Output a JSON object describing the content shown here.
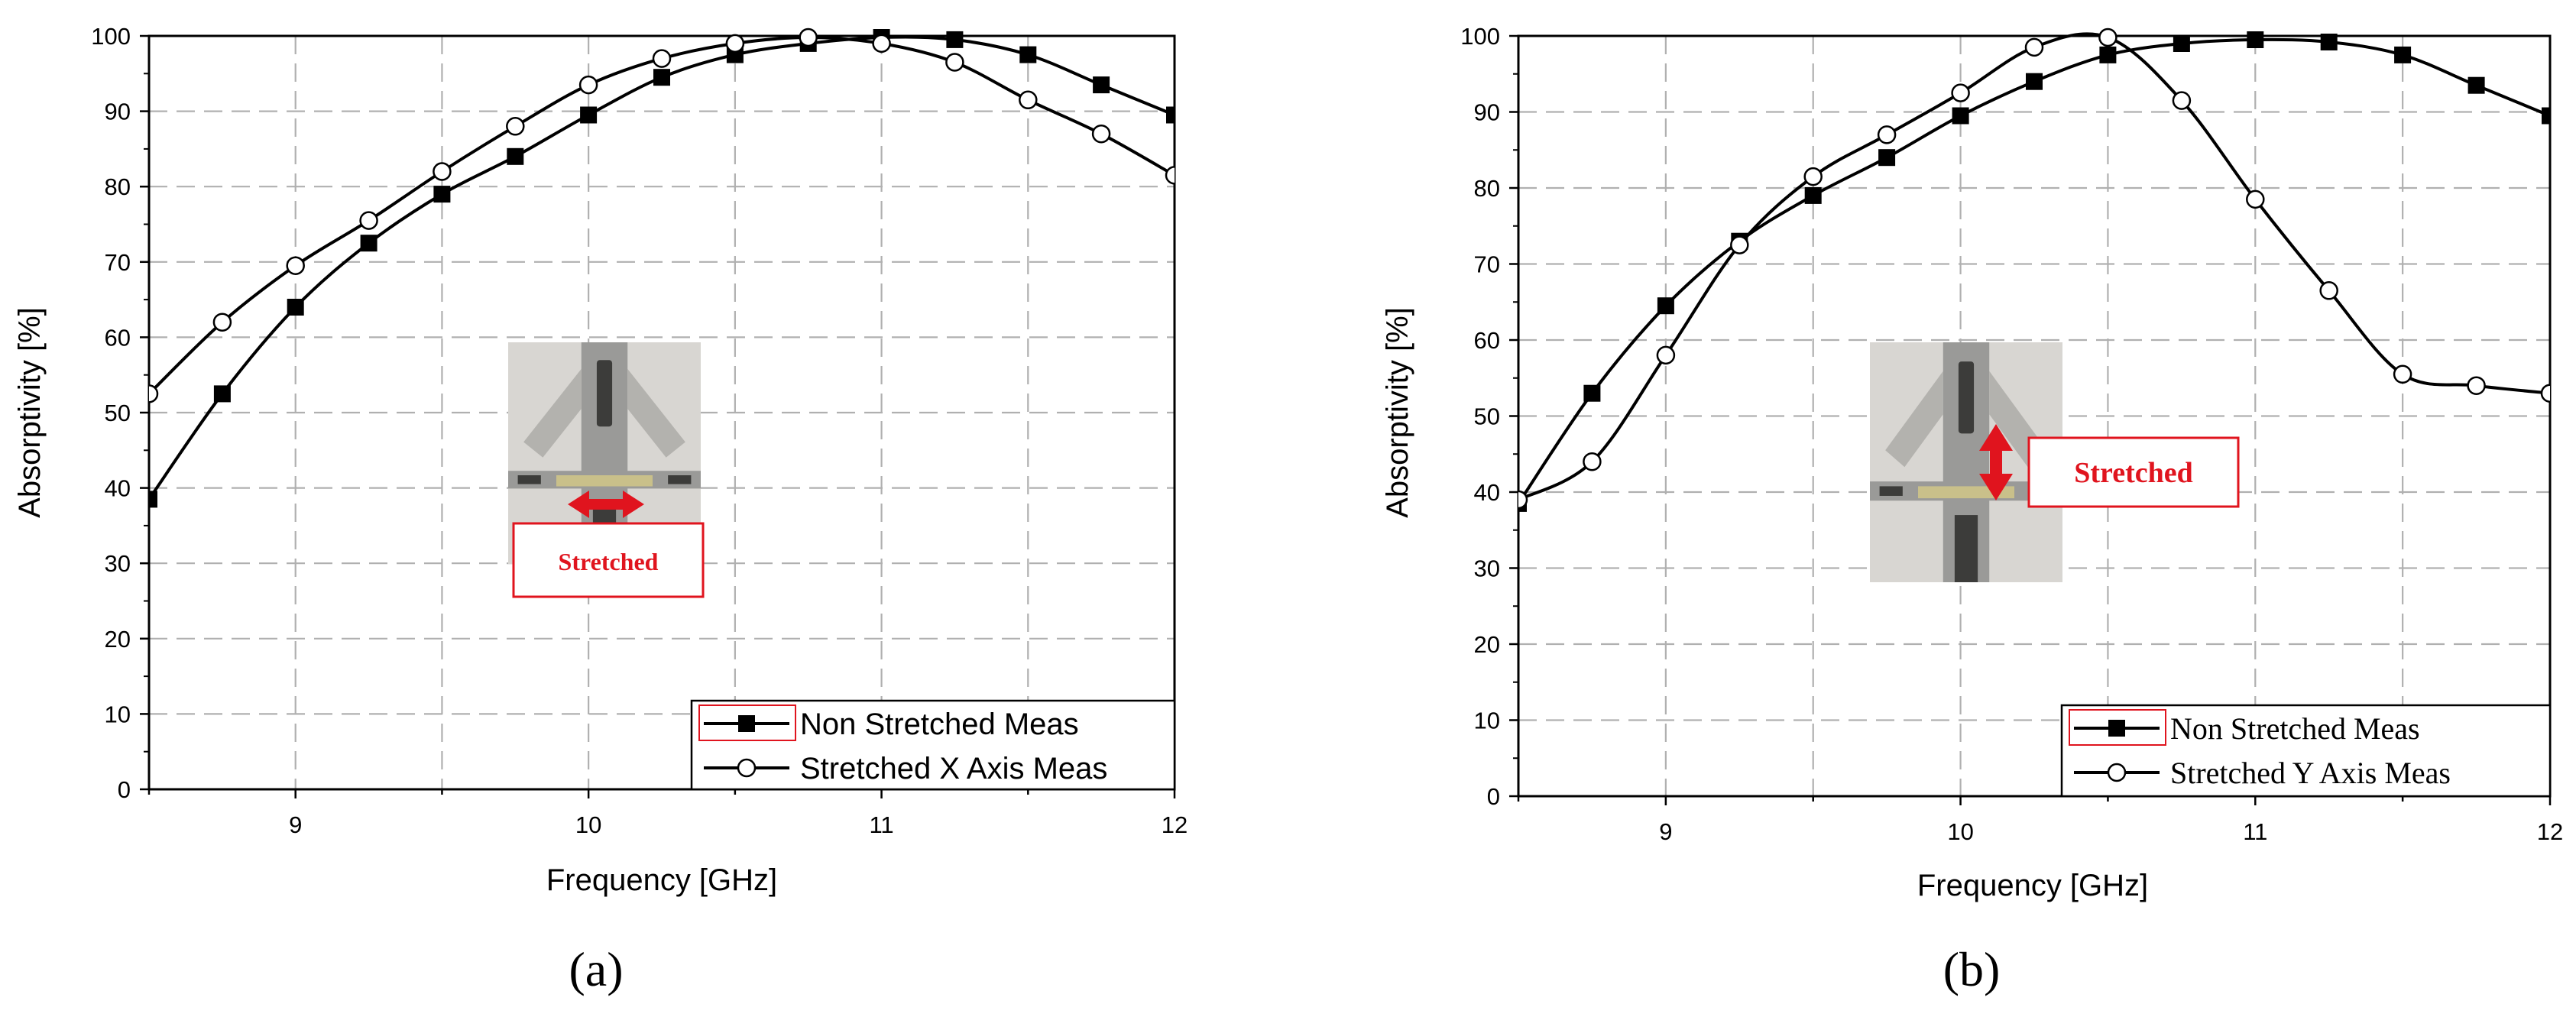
{
  "figure": {
    "panels": [
      {
        "caption": "(a)",
        "inset_label": "Stretched",
        "inset_arrow": "horizontal",
        "photo_colors": {
          "frame": "#9a9a98",
          "bg": "#d8d6d2",
          "dark": "#3c3c3a",
          "chip": "#c9c08a"
        }
      },
      {
        "caption": "(b)",
        "inset_label": "Stretched",
        "inset_arrow": "vertical",
        "photo_colors": {
          "frame": "#9a9a98",
          "bg": "#d8d6d2",
          "dark": "#3c3c3a",
          "chip": "#c9c08a"
        }
      }
    ],
    "colors": {
      "line": "#000000",
      "grid": "#b0b0b0",
      "inset_accent": "#e0141e"
    }
  },
  "chart_data": [
    {
      "type": "line",
      "xlabel": "Frequency [GHz]",
      "ylabel": "Absorptivity [%]",
      "xlim": [
        8.5,
        12
      ],
      "ylim": [
        0,
        100
      ],
      "xticks": [
        9,
        10,
        11,
        12
      ],
      "yticks": [
        0,
        10,
        20,
        30,
        40,
        50,
        60,
        70,
        80,
        90,
        100
      ],
      "grid": true,
      "legend_position": "bottom-right",
      "series": [
        {
          "name": "Non Stretched Meas",
          "marker": "filled-square",
          "x": [
            8.5,
            8.75,
            9,
            9.25,
            9.5,
            9.75,
            10,
            10.25,
            10.5,
            10.75,
            11,
            11.25,
            11.5,
            11.75,
            12
          ],
          "y": [
            38.5,
            52.5,
            64,
            72.5,
            79,
            84,
            89.5,
            94.5,
            97.5,
            99,
            99.8,
            99.5,
            97.5,
            93.5,
            89.5
          ]
        },
        {
          "name": "Stretched X Axis Meas",
          "marker": "open-circle",
          "x": [
            8.5,
            8.75,
            9,
            9.25,
            9.5,
            9.75,
            10,
            10.25,
            10.5,
            10.75,
            11,
            11.25,
            11.5,
            11.75,
            12
          ],
          "y": [
            52.5,
            62,
            69.5,
            75.5,
            82,
            88,
            93.5,
            97,
            99,
            99.8,
            99,
            96.5,
            91.5,
            87,
            81.5
          ]
        }
      ]
    },
    {
      "type": "line",
      "xlabel": "Frequency [GHz]",
      "ylabel": "Absorptivity [%]",
      "xlim": [
        8.5,
        12
      ],
      "ylim": [
        0,
        100
      ],
      "xticks": [
        9,
        10,
        11,
        12
      ],
      "yticks": [
        0,
        10,
        20,
        30,
        40,
        50,
        60,
        70,
        80,
        90,
        100
      ],
      "grid": true,
      "legend_position": "bottom-right",
      "series": [
        {
          "name": "Non Stretched Meas",
          "marker": "filled-square",
          "x": [
            8.5,
            8.75,
            9,
            9.25,
            9.5,
            9.75,
            10,
            10.25,
            10.5,
            10.75,
            11,
            11.25,
            11.5,
            11.75,
            12
          ],
          "y": [
            38.5,
            53,
            64.5,
            73,
            79,
            84,
            89.5,
            94,
            97.5,
            99,
            99.5,
            99.2,
            97.5,
            93.5,
            89.5
          ]
        },
        {
          "name": "Stretched Y Axis Meas",
          "marker": "open-circle",
          "x": [
            8.5,
            8.75,
            9,
            9.25,
            9.5,
            9.75,
            10,
            10.25,
            10.5,
            10.75,
            11,
            11.25,
            11.5,
            11.75,
            12
          ],
          "y": [
            39,
            44,
            58,
            72.5,
            81.5,
            87,
            92.5,
            98.5,
            99.8,
            91.5,
            78.5,
            66.5,
            55.5,
            54,
            53
          ]
        }
      ]
    }
  ]
}
